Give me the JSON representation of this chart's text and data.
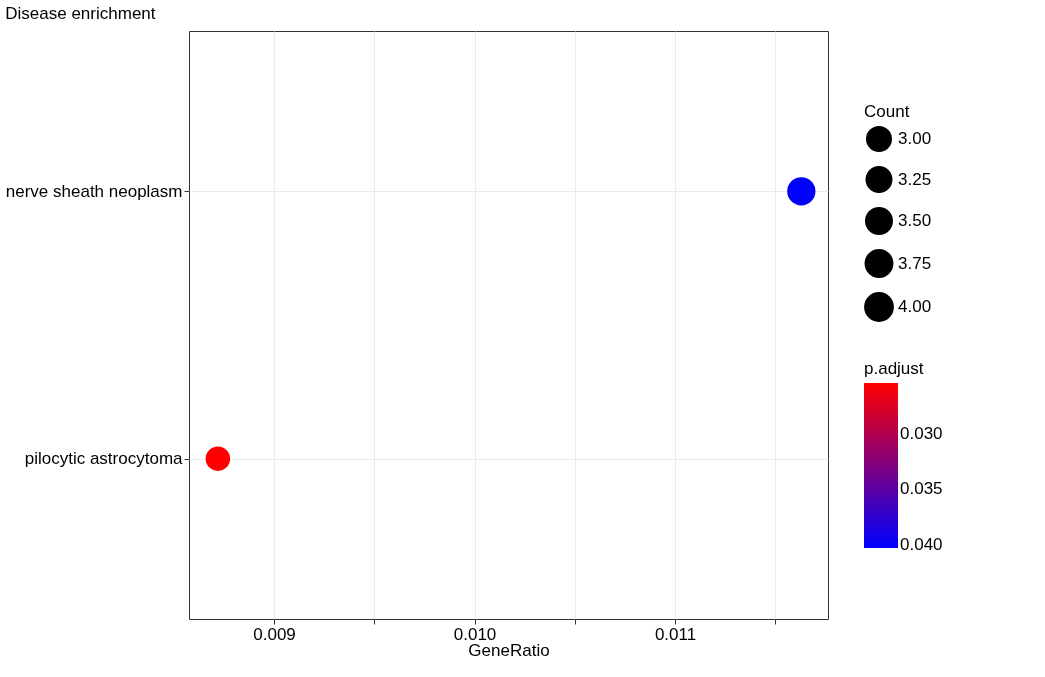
{
  "chart_data": {
    "type": "bubble",
    "orientation": "horizontal",
    "title": "Disease enrichment",
    "xlabel": "GeneRatio",
    "categories": [
      "nerve sheath neoplasm",
      "pilocytic astrocytoma"
    ],
    "values": [
      0.01163,
      0.00872
    ],
    "sizes": [
      4,
      3
    ],
    "cvalues": [
      0.0403,
      0.0254
    ],
    "colors": [
      "#0000ff",
      "#ff0000"
    ],
    "legend_title": "Count",
    "clabel": "p.adjust",
    "size_legend": [
      {
        "value": 3,
        "label": "3.00"
      },
      {
        "value": 3.25,
        "label": "3.25"
      },
      {
        "value": 3.5,
        "label": "3.50"
      },
      {
        "value": 3.75,
        "label": "3.75"
      },
      {
        "value": 4,
        "label": "4.00"
      }
    ],
    "clim": [
      0.0254,
      0.0403
    ],
    "cticks": [
      {
        "value": 0.03,
        "label": "0.030"
      },
      {
        "value": 0.035,
        "label": "0.035"
      },
      {
        "value": 0.04,
        "label": "0.040"
      }
    ],
    "xlim": [
      0.008576,
      0.011763
    ],
    "xticks": [
      0.009,
      {
        "value": 0.0095,
        "label": null
      },
      {
        "value": 0.01,
        "label": "0.010"
      },
      {
        "value": 0.0105,
        "label": null
      },
      0.011,
      {
        "value": 0.0115,
        "label": null
      }
    ],
    "grid": true
  }
}
